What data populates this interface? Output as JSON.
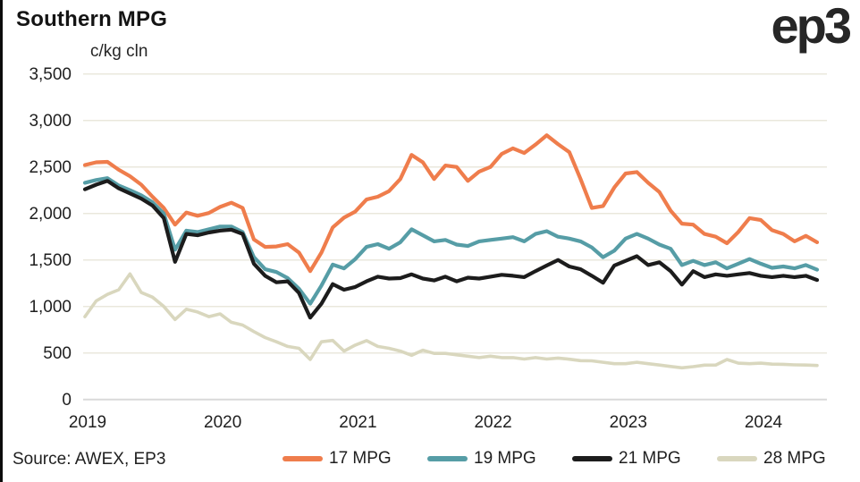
{
  "window": {
    "left_border_color": "#0B0B0B"
  },
  "header": {
    "title": "Southern MPG",
    "unit_label": "c/kg cln",
    "logo_text": "ep3"
  },
  "source_note": "Source: AWEX, EP3",
  "chart_data": {
    "type": "line",
    "title": "Southern MPG",
    "ylabel": "c/kg cln",
    "ylim": [
      0,
      3500
    ],
    "y_ticks": [
      0,
      500,
      1000,
      1500,
      2000,
      2500,
      3000,
      3500
    ],
    "y_tick_labels": [
      "0",
      "500",
      "1,000",
      "1,500",
      "2,000",
      "2,500",
      "3,000",
      "3,500"
    ],
    "x_ticks": [
      2019,
      2020,
      2021,
      2022,
      2023,
      2024
    ],
    "x_start": "2019-01",
    "x_end": "2024-06",
    "points_per_year": 12,
    "grid": "horizontal",
    "legend_position": "bottom",
    "background": "#FFFFFF",
    "grid_color": "#EAE8DC",
    "zero_line_color": "#D9D9D9",
    "text_color": "#1F1F1F",
    "series": [
      {
        "name": "17 MPG",
        "color": "#EF7D4C",
        "values": [
          2520,
          2550,
          2555,
          2470,
          2400,
          2310,
          2180,
          2060,
          1880,
          2010,
          1975,
          2005,
          2070,
          2115,
          2060,
          1720,
          1640,
          1645,
          1670,
          1580,
          1380,
          1580,
          1850,
          1955,
          2020,
          2150,
          2180,
          2240,
          2370,
          2630,
          2550,
          2370,
          2515,
          2500,
          2350,
          2450,
          2500,
          2640,
          2700,
          2650,
          2740,
          2840,
          2745,
          2660,
          2370,
          2060,
          2080,
          2280,
          2430,
          2445,
          2330,
          2230,
          2030,
          1890,
          1880,
          1780,
          1750,
          1680,
          1800,
          1950,
          1930,
          1820,
          1780,
          1700,
          1760,
          1690
        ]
      },
      {
        "name": "19 MPG",
        "color": "#569DA6",
        "values": [
          2330,
          2360,
          2380,
          2300,
          2250,
          2195,
          2120,
          2000,
          1610,
          1815,
          1800,
          1830,
          1860,
          1860,
          1800,
          1530,
          1400,
          1370,
          1305,
          1190,
          1030,
          1225,
          1450,
          1410,
          1510,
          1640,
          1670,
          1620,
          1690,
          1830,
          1765,
          1700,
          1715,
          1665,
          1650,
          1700,
          1715,
          1730,
          1745,
          1700,
          1780,
          1810,
          1750,
          1730,
          1700,
          1635,
          1530,
          1600,
          1730,
          1780,
          1730,
          1665,
          1620,
          1445,
          1490,
          1445,
          1475,
          1410,
          1460,
          1510,
          1460,
          1415,
          1430,
          1410,
          1445,
          1395
        ]
      },
      {
        "name": "21 MPG",
        "color": "#1C1C1C",
        "values": [
          2260,
          2310,
          2350,
          2270,
          2215,
          2160,
          2085,
          1950,
          1480,
          1780,
          1765,
          1795,
          1815,
          1825,
          1780,
          1460,
          1330,
          1260,
          1270,
          1145,
          880,
          1030,
          1240,
          1180,
          1210,
          1270,
          1320,
          1300,
          1305,
          1345,
          1300,
          1280,
          1320,
          1270,
          1310,
          1300,
          1320,
          1340,
          1330,
          1315,
          1380,
          1440,
          1500,
          1430,
          1400,
          1330,
          1255,
          1440,
          1490,
          1540,
          1445,
          1475,
          1380,
          1235,
          1380,
          1315,
          1345,
          1330,
          1345,
          1360,
          1330,
          1315,
          1330,
          1315,
          1330,
          1285
        ]
      },
      {
        "name": "28 MPG",
        "color": "#D9D7BE",
        "values": [
          890,
          1060,
          1130,
          1180,
          1350,
          1150,
          1100,
          1000,
          860,
          970,
          940,
          890,
          920,
          830,
          800,
          730,
          665,
          620,
          570,
          550,
          430,
          620,
          635,
          520,
          585,
          633,
          570,
          550,
          520,
          475,
          530,
          495,
          495,
          480,
          465,
          450,
          465,
          450,
          450,
          435,
          450,
          435,
          445,
          433,
          417,
          415,
          400,
          385,
          385,
          400,
          385,
          370,
          355,
          340,
          353,
          369,
          370,
          430,
          390,
          385,
          390,
          380,
          378,
          372,
          370,
          365
        ]
      }
    ]
  }
}
